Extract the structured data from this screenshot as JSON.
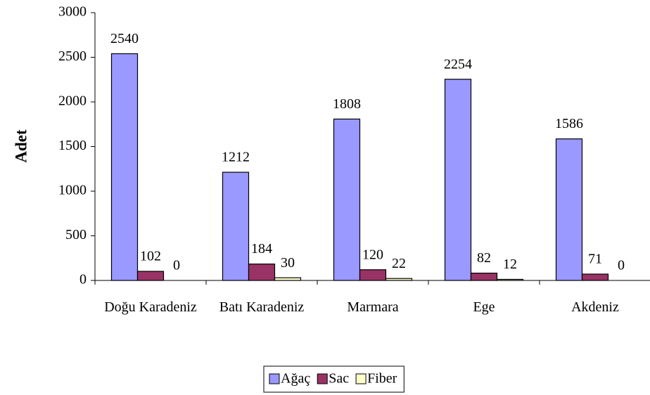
{
  "chart_data": {
    "type": "bar",
    "ylabel": "Adet",
    "categories": [
      "Doğu Karadeniz",
      "Batı Karadeniz",
      "Marmara",
      "Ege",
      "Akdeniz"
    ],
    "series": [
      {
        "name": "Ağaç",
        "color": "#9999ff",
        "values": [
          2540,
          1212,
          1808,
          2254,
          1586
        ]
      },
      {
        "name": "Sac",
        "color": "#993366",
        "values": [
          102,
          184,
          120,
          82,
          71
        ]
      },
      {
        "name": "Fiber",
        "color": "#ffffcc",
        "values": [
          0,
          30,
          22,
          12,
          0
        ]
      }
    ],
    "ylim": [
      0,
      3000
    ],
    "yticks": [
      0,
      500,
      1000,
      1500,
      2000,
      2500,
      3000
    ],
    "grid": false,
    "legend": "bottom"
  }
}
